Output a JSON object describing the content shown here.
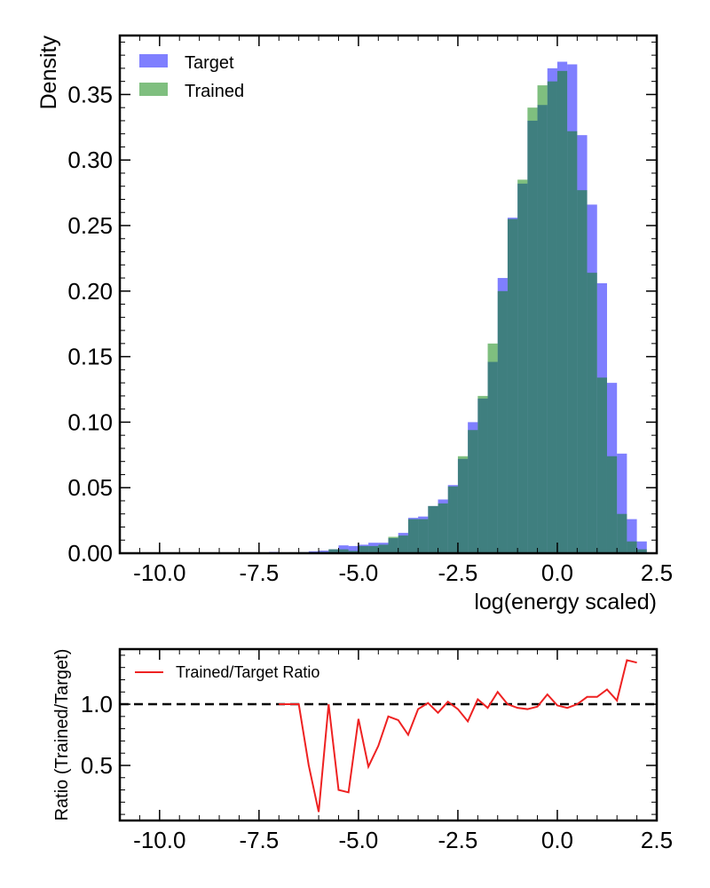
{
  "chart_data": [
    {
      "type": "bar",
      "subtype": "histogram",
      "xlabel": "log(energy scaled)",
      "ylabel": "Density",
      "xlim": [
        -11.0,
        2.5
      ],
      "ylim": [
        0.0,
        0.395
      ],
      "xticks": [
        -10.0,
        -7.5,
        -5.0,
        -2.5,
        0.0,
        2.5
      ],
      "xtick_labels": [
        "-10.0",
        "-7.5",
        "-5.0",
        "-2.5",
        "0.0",
        "2.5"
      ],
      "yticks": [
        0.0,
        0.05,
        0.1,
        0.15,
        0.2,
        0.25,
        0.3,
        0.35
      ],
      "ytick_labels": [
        "0.00",
        "0.05",
        "0.10",
        "0.15",
        "0.20",
        "0.25",
        "0.30",
        "0.35"
      ],
      "legend_position": "top-left",
      "bin_edges": [
        -10.5,
        -10.25,
        -10.0,
        -9.75,
        -9.5,
        -9.25,
        -9.0,
        -8.75,
        -8.5,
        -8.25,
        -8.0,
        -7.75,
        -7.5,
        -7.25,
        -7.0,
        -6.75,
        -6.5,
        -6.25,
        -6.0,
        -5.75,
        -5.5,
        -5.25,
        -5.0,
        -4.75,
        -4.5,
        -4.25,
        -4.0,
        -3.75,
        -3.5,
        -3.25,
        -3.0,
        -2.75,
        -2.5,
        -2.25,
        -2.0,
        -1.75,
        -1.5,
        -1.25,
        -1.0,
        -0.75,
        -0.5,
        -0.25,
        0.0,
        0.25,
        0.5,
        0.75,
        1.0,
        1.25,
        1.5,
        1.75,
        2.0,
        2.25
      ],
      "series": [
        {
          "name": "Target",
          "color": "#0000ff",
          "opacity": 0.5,
          "values": [
            0,
            0,
            0,
            0,
            0,
            0,
            0,
            0,
            0,
            0,
            0,
            0,
            0.0005,
            0.001,
            0.0005,
            0.0007,
            0.0008,
            0.0015,
            0.002,
            0.003,
            0.006,
            0.0055,
            0.0065,
            0.008,
            0.008,
            0.0115,
            0.0155,
            0.027,
            0.028,
            0.036,
            0.041,
            0.052,
            0.072,
            0.1,
            0.118,
            0.146,
            0.21,
            0.256,
            0.282,
            0.33,
            0.342,
            0.37,
            0.375,
            0.373,
            0.319,
            0.266,
            0.206,
            0.13,
            0.076,
            0.026,
            0.009,
            0.004
          ]
        },
        {
          "name": "Trained",
          "color": "#008000",
          "opacity": 0.5,
          "values": [
            0,
            0,
            0,
            0,
            0,
            0,
            0,
            0,
            0,
            0,
            0,
            0,
            0.0005,
            0.0005,
            0,
            0.0007,
            0.0008,
            0.0008,
            0.001,
            0.003,
            0.003,
            0.0018,
            0.0055,
            0.0055,
            0.0065,
            0.0125,
            0.0135,
            0.026,
            0.026,
            0.036,
            0.038,
            0.051,
            0.074,
            0.094,
            0.12,
            0.16,
            0.2,
            0.255,
            0.285,
            0.34,
            0.357,
            0.36,
            0.368,
            0.322,
            0.277,
            0.214,
            0.134,
            0.074,
            0.03,
            0.009,
            0.003,
            0.002
          ]
        }
      ]
    },
    {
      "type": "line",
      "xlabel": "",
      "ylabel": "Ratio (Trained/Target)",
      "xlim": [
        -11.0,
        2.5
      ],
      "ylim": [
        0.05,
        1.45
      ],
      "xticks": [
        -10.0,
        -7.5,
        -5.0,
        -2.5,
        0.0,
        2.5
      ],
      "xtick_labels": [
        "-10.0",
        "-7.5",
        "-5.0",
        "-2.5",
        "0.0",
        "2.5"
      ],
      "yticks": [
        0.5,
        1.0
      ],
      "ytick_labels": [
        "0.5",
        "1.0"
      ],
      "reference_line": {
        "y": 1.0,
        "style": "dashed",
        "color": "#000000"
      },
      "legend_position": "top-left",
      "series": [
        {
          "name": "Trained/Target Ratio",
          "color": "#ee2222",
          "x": [
            -7.0,
            -6.75,
            -6.5,
            -6.25,
            -6.0,
            -5.75,
            -5.5,
            -5.25,
            -5.0,
            -4.75,
            -4.5,
            -4.25,
            -4.0,
            -3.75,
            -3.5,
            -3.25,
            -3.0,
            -2.75,
            -2.5,
            -2.25,
            -2.0,
            -1.75,
            -1.5,
            -1.25,
            -1.0,
            -0.75,
            -0.5,
            -0.25,
            0.0,
            0.25,
            0.5,
            0.75,
            1.0,
            1.25,
            1.5,
            1.75,
            2.0
          ],
          "values": [
            1.0,
            1.0,
            1.0,
            0.5,
            0.12,
            1.0,
            0.3,
            0.28,
            0.88,
            0.49,
            0.66,
            0.9,
            0.87,
            0.75,
            0.96,
            1.01,
            0.93,
            1.02,
            0.96,
            0.86,
            1.04,
            0.97,
            1.1,
            1.0,
            0.97,
            0.96,
            0.98,
            1.08,
            0.99,
            0.97,
            1.0,
            1.06,
            1.06,
            1.12,
            1.03,
            1.36,
            1.34
          ]
        }
      ]
    }
  ]
}
